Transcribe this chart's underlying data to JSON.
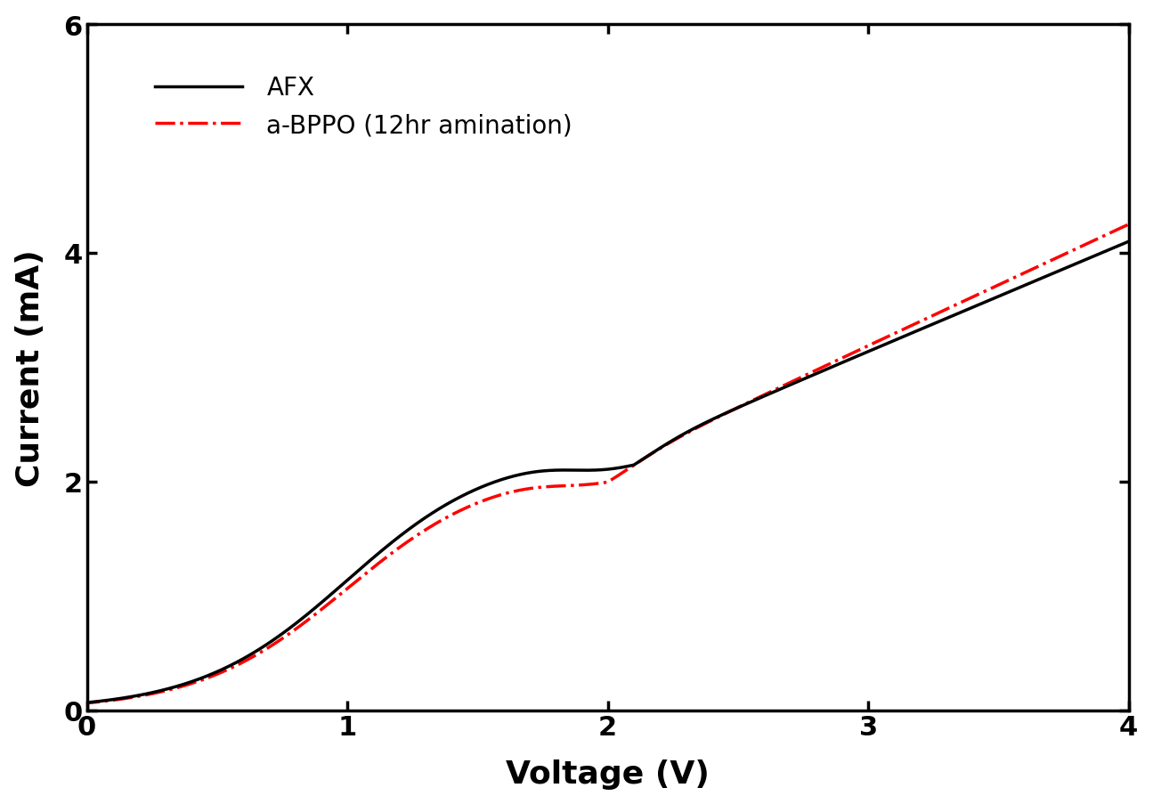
{
  "title": "",
  "xlabel": "Voltage (V)",
  "ylabel": "Current (mA)",
  "xlim": [
    0,
    4
  ],
  "ylim": [
    0,
    6
  ],
  "xticks": [
    0,
    1,
    2,
    3,
    4
  ],
  "yticks": [
    0,
    2,
    4,
    6
  ],
  "legend_afx": "AFX",
  "legend_abppo": "a-BPPO (12hr amination)",
  "afx_color": "#000000",
  "abppo_color": "#ff0000",
  "xlabel_fontsize": 26,
  "ylabel_fontsize": 26,
  "tick_fontsize": 22,
  "legend_fontsize": 20,
  "linewidth": 2.5,
  "background_color": "#ffffff"
}
